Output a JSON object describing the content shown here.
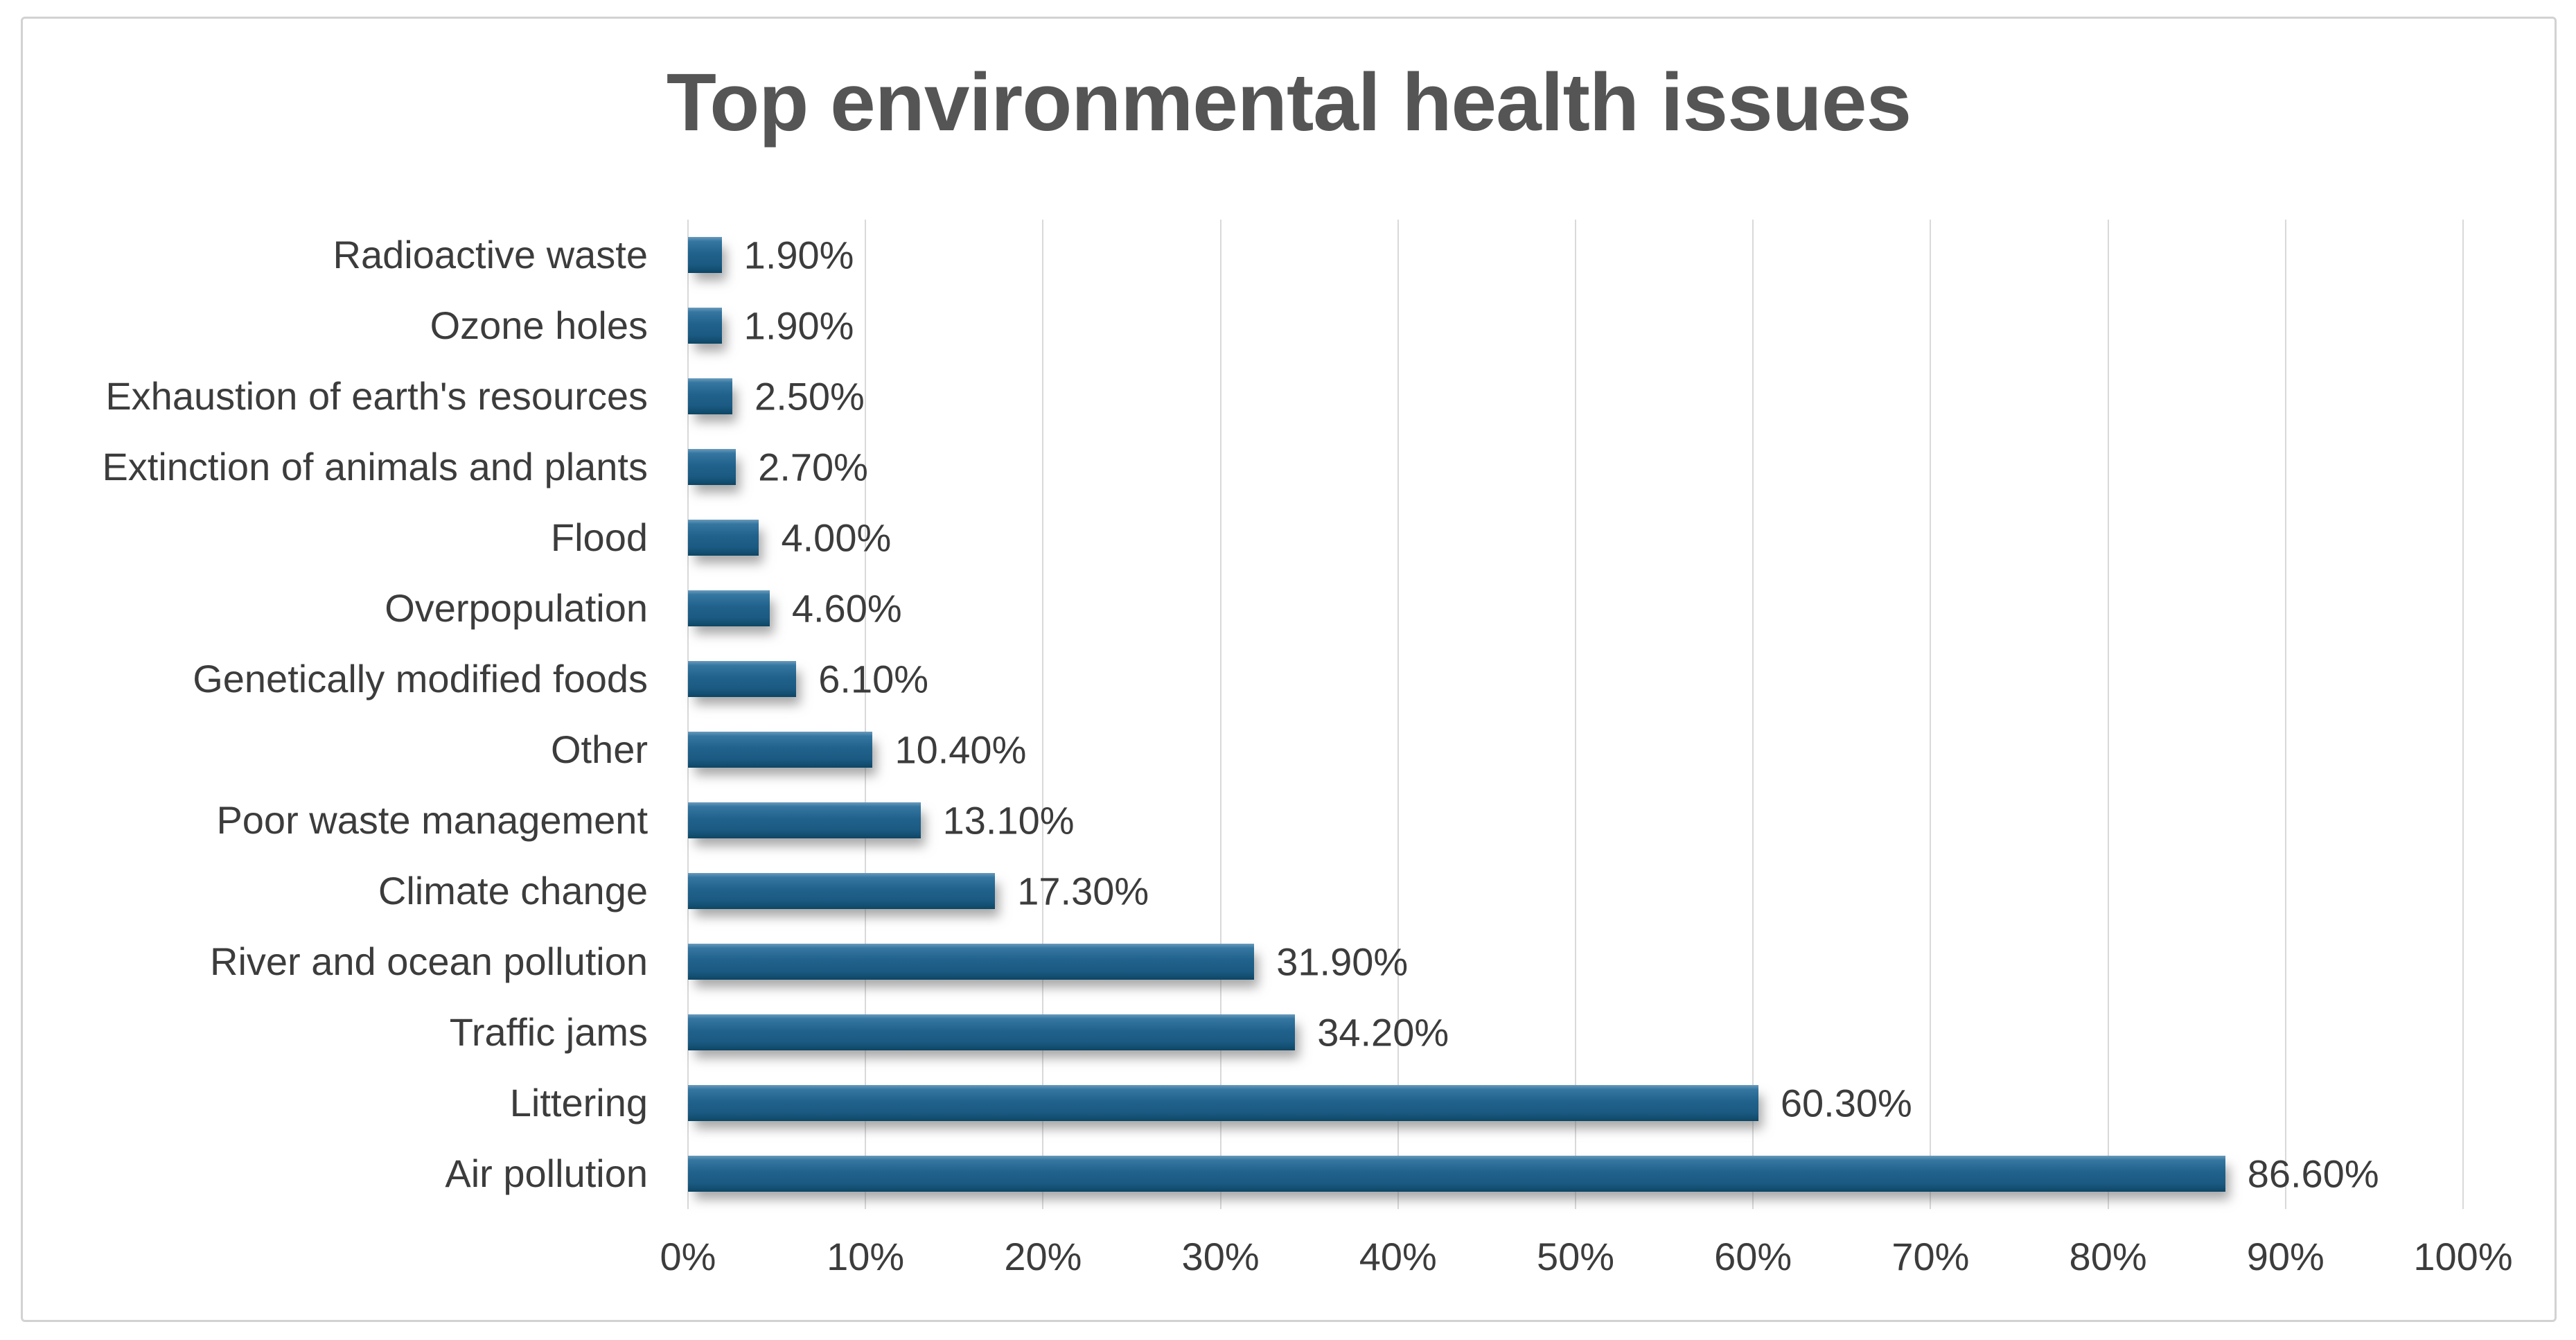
{
  "chart_data": {
    "type": "bar",
    "orientation": "horizontal",
    "title": "Top environmental health issues",
    "categories": [
      "Radioactive waste",
      "Ozone holes",
      "Exhaustion of earth's resources",
      "Extinction of animals and plants",
      "Flood",
      "Overpopulation",
      "Genetically modified foods",
      "Other",
      "Poor waste management",
      "Climate change",
      "River and ocean pollution",
      "Traffic jams",
      "Littering",
      "Air pollution"
    ],
    "values": [
      1.9,
      1.9,
      2.5,
      2.7,
      4.0,
      4.6,
      6.1,
      10.4,
      13.1,
      17.3,
      31.9,
      34.2,
      60.3,
      86.6
    ],
    "value_labels": [
      "1.90%",
      "1.90%",
      "2.50%",
      "2.70%",
      "4.00%",
      "4.60%",
      "6.10%",
      "10.40%",
      "13.10%",
      "17.30%",
      "31.90%",
      "34.20%",
      "60.30%",
      "86.60%"
    ],
    "xlabel": "",
    "ylabel": "",
    "xlim": [
      0,
      100
    ],
    "x_ticks": [
      "0%",
      "10%",
      "20%",
      "30%",
      "40%",
      "50%",
      "60%",
      "70%",
      "80%",
      "90%",
      "100%"
    ],
    "x_tick_step_percent": 10,
    "grid": "vertical gridlines on",
    "legend": "none",
    "row_order": "smallest value at top, largest at bottom"
  },
  "colors": {
    "bar_fill_top": "#6B9BBC",
    "bar_fill_mid": "#20628C",
    "bar_fill_bottom": "#114C6D",
    "gridline": "#D9D9D9",
    "title_text": "#555555",
    "label_text": "#3C3C3C",
    "frame_border": "#D2D2D2",
    "background": "#FFFFFF"
  }
}
